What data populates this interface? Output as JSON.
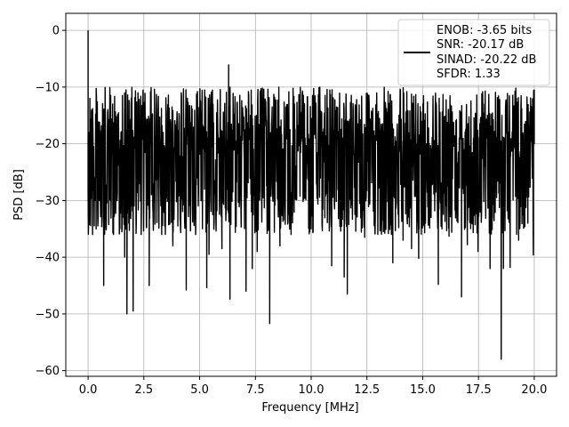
{
  "chart_data": {
    "type": "line",
    "title": "",
    "xlabel": "Frequency [MHz]",
    "ylabel": "PSD [dB]",
    "xlim": [
      -1.0,
      21.0
    ],
    "ylim": [
      -61.0,
      3.0
    ],
    "xticks": [
      0.0,
      2.5,
      5.0,
      7.5,
      10.0,
      12.5,
      15.0,
      17.5,
      20.0
    ],
    "xtick_labels": [
      "0.0",
      "2.5",
      "5.0",
      "7.5",
      "10.0",
      "12.5",
      "15.0",
      "17.5",
      "20.0"
    ],
    "yticks": [
      0,
      -10,
      -20,
      -30,
      -40,
      -50,
      -60
    ],
    "ytick_labels": [
      "0",
      "−10",
      "−20",
      "−30",
      "−40",
      "−50",
      "−60"
    ],
    "grid": true,
    "legend_position": "top-right",
    "series": [
      {
        "color": "#000000",
        "noise_band_upper_db": [
          -10,
          -22
        ],
        "noise_floor_db": -20,
        "noise_band_lower_db": [
          -26,
          -36
        ],
        "points": [
          [
            0.0,
            0.0
          ],
          [
            0.04,
            -18.0
          ],
          [
            0.08,
            -12.0
          ],
          [
            0.12,
            -22.0
          ],
          [
            0.16,
            -14.0
          ],
          [
            0.2,
            -36.0
          ],
          [
            0.28,
            -26.0
          ],
          [
            0.36,
            -35.0
          ],
          [
            0.5,
            -30.0
          ],
          [
            0.7,
            -45.0
          ],
          [
            1.14,
            -36.0
          ],
          [
            1.64,
            -40.0
          ],
          [
            1.74,
            -50.0
          ],
          [
            2.02,
            -49.5
          ],
          [
            2.38,
            -36.0
          ],
          [
            2.74,
            -45.0
          ],
          [
            3.3,
            -36.0
          ],
          [
            3.8,
            -38.0
          ],
          [
            4.4,
            -45.8
          ],
          [
            4.82,
            -36.0
          ],
          [
            5.32,
            -45.4
          ],
          [
            5.42,
            -39.5
          ],
          [
            6.0,
            -38.5
          ],
          [
            6.3,
            -6.1
          ],
          [
            6.36,
            -47.4
          ],
          [
            7.08,
            -46.0
          ],
          [
            7.36,
            -42.0
          ],
          [
            7.58,
            -39.0
          ],
          [
            8.14,
            -51.7
          ],
          [
            8.6,
            -38.0
          ],
          [
            9.1,
            -36.0
          ],
          [
            10.0,
            -35.0
          ],
          [
            10.92,
            -41.5
          ],
          [
            11.48,
            -43.5
          ],
          [
            11.62,
            -46.5
          ],
          [
            12.4,
            -36.5
          ],
          [
            13.66,
            -41.0
          ],
          [
            14.12,
            -37.0
          ],
          [
            14.5,
            -38.5
          ],
          [
            14.82,
            -40.2
          ],
          [
            15.7,
            -44.8
          ],
          [
            16.18,
            -36.3
          ],
          [
            16.74,
            -47.0
          ],
          [
            17.0,
            -37.8
          ],
          [
            17.48,
            -39.0
          ],
          [
            18.02,
            -42.0
          ],
          [
            18.52,
            -58.0
          ],
          [
            18.62,
            -42.0
          ],
          [
            18.92,
            -41.8
          ],
          [
            19.3,
            -37.0
          ],
          [
            19.96,
            -39.6
          ],
          [
            20.0,
            -20.0
          ]
        ]
      }
    ],
    "legend_lines": [
      "ENOB: -3.65 bits",
      "SNR: -20.17 dB",
      "SINAD: -20.22 dB",
      "SFDR: 1.33"
    ]
  }
}
